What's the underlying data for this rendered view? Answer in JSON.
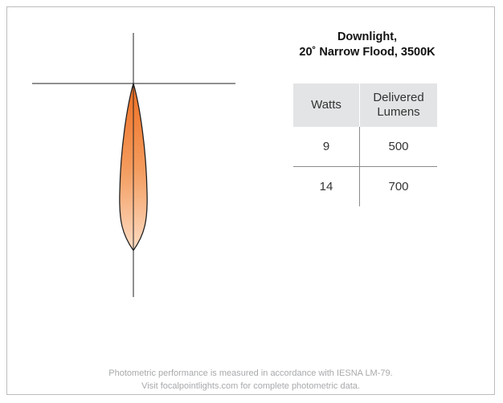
{
  "title": {
    "line1": "Downlight,",
    "line2": "20˚ Narrow Flood, 3500K"
  },
  "table": {
    "headers": {
      "watts": "Watts",
      "lumens_line1": "Delivered",
      "lumens_line2": "Lumens"
    },
    "rows": [
      {
        "watts": "9",
        "lumens": "500"
      },
      {
        "watts": "14",
        "lumens": "700"
      }
    ]
  },
  "footnote": {
    "line1": "Photometric performance is measured in accordance with IESNA LM-79.",
    "line2": "Visit focalpointlights.com for complete photometric data."
  },
  "colors": {
    "beam_top": "#f07a2c",
    "beam_bottom": "#fdd7ba",
    "header_bg": "#e3e4e5",
    "footnote_text": "#a7a9ac"
  }
}
